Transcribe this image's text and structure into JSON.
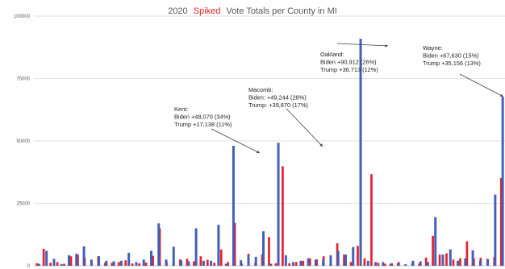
{
  "chart_data": {
    "type": "bar",
    "title_parts": [
      "2020",
      "Spiked",
      "Vote Totals per County in MI"
    ],
    "xlabel": "",
    "ylabel": "",
    "ylim": [
      0,
      100000
    ],
    "yticks": [
      0,
      25000,
      50000,
      75000,
      100000
    ],
    "grid": true,
    "legend": "none",
    "series": [
      {
        "color": "#e8212b",
        "values": [
          1000,
          6800,
          1200,
          1500,
          800,
          3800,
          4500,
          3200,
          1500,
          3800,
          1200,
          1200,
          1500,
          2200,
          900,
          1000,
          1300,
          4000,
          15000,
          1500,
          1200,
          2500,
          2800,
          1800,
          3800,
          2400,
          1200,
          6500,
          1500,
          17138,
          800,
          4800,
          1200,
          4500,
          11500,
          1000,
          39870,
          1000,
          1500,
          2000,
          3000,
          2500,
          3800,
          800,
          9000,
          4500,
          1500,
          8000,
          3000,
          36713,
          1200,
          800,
          1000,
          1500,
          600,
          1000,
          900,
          3300,
          12000,
          4500,
          5000,
          2500,
          3000,
          9800,
          3000,
          3200,
          2800,
          3500,
          35156
        ]
      },
      {
        "color": "#4060b8",
        "values": [
          800,
          6000,
          2800,
          700,
          4200,
          4800,
          7800,
          2500,
          3800,
          2000,
          1800,
          2000,
          5200,
          1500,
          2500,
          6000,
          17000,
          2500,
          7600,
          2200,
          1800,
          15000,
          2000,
          2000,
          16400,
          800,
          48070,
          2200,
          4200,
          3600,
          13800,
          800,
          49244,
          4200,
          1500,
          2000,
          3000,
          2500,
          2500,
          4200,
          6000,
          4500,
          7500,
          90912,
          2000,
          1500,
          1500,
          800,
          1000,
          500,
          2000,
          1800,
          1500,
          19500,
          4500,
          6600,
          2000,
          3000,
          6200,
          2000,
          2500,
          28500,
          67630
        ]
      }
    ],
    "annotations": [
      {
        "label": "Kent",
        "lines": [
          "Kent:",
          "Biden +48,070 (34%)",
          "Trump +17,138 (11%)"
        ]
      },
      {
        "label": "Macomb",
        "lines": [
          "Macomb:",
          "Biden: +49,244 (28%)",
          "Trump: +39,870 (17%)"
        ]
      },
      {
        "label": "Oakland",
        "lines": [
          "Oakland:",
          "Biden +90,912 (26%)",
          "Trump +36,713 (12%)"
        ]
      },
      {
        "label": "Wayne",
        "lines": [
          "Wayne:",
          "Biden +67,630 (15%)",
          "Trump +35,156 (13%)"
        ]
      }
    ]
  }
}
